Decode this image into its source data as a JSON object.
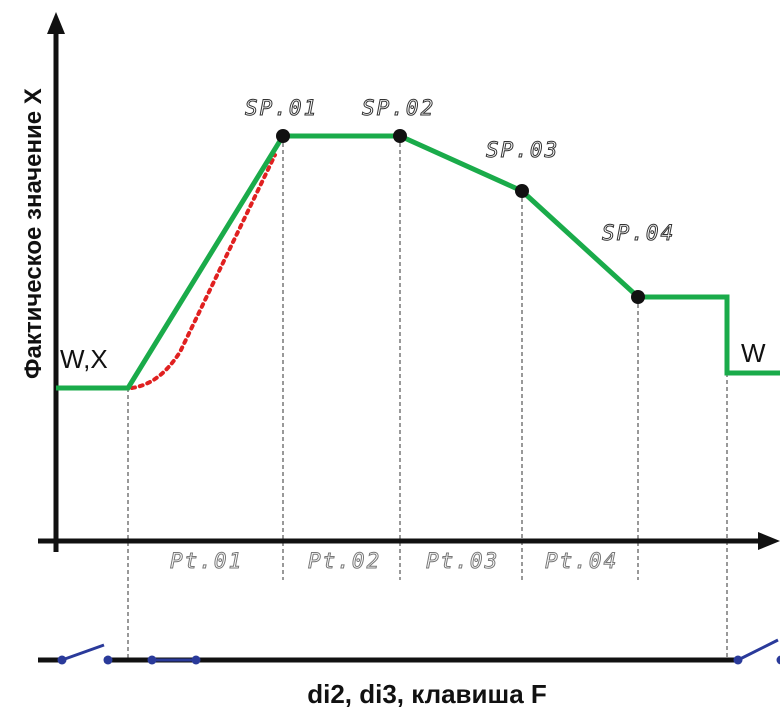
{
  "y_axis_label": "Фактическое значение Х",
  "start_label": "W,X",
  "end_label": "W",
  "setpoints": [
    "SP.01",
    "SP.02",
    "SP.03",
    "SP.04"
  ],
  "segments": [
    "Pt.01",
    "Pt.02",
    "Pt.03",
    "Pt.04"
  ],
  "bottom_caption": "di2, di3, клавиша F",
  "colors": {
    "profile": "#1aab4a",
    "actual": "#e02020",
    "axis": "#111111",
    "switch": "#2a3a9a",
    "point": "#111111"
  }
}
